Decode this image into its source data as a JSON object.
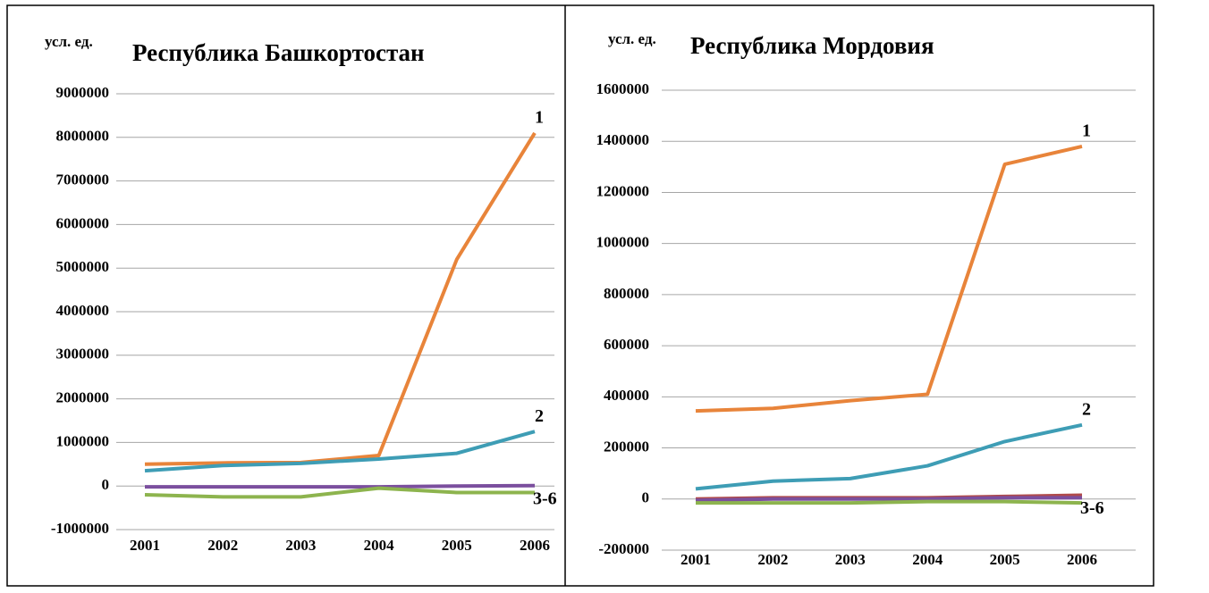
{
  "chart_data": [
    {
      "type": "line",
      "title": "Республика Башкортостан",
      "y_label": "усл. ед.",
      "categories": [
        "2001",
        "2002",
        "2003",
        "2004",
        "2005",
        "2006"
      ],
      "series": [
        {
          "color": "#e8843a",
          "values": [
            500000,
            530000,
            540000,
            700000,
            5200000,
            8100000
          ]
        },
        {
          "color": "#3e9db5",
          "values": [
            350000,
            470000,
            520000,
            620000,
            750000,
            1250000
          ]
        },
        {
          "color": "#7b4f9e",
          "values": [
            -20000,
            -20000,
            -20000,
            -20000,
            0,
            10000
          ]
        },
        {
          "color": "#8db44e",
          "values": [
            -200000,
            -250000,
            -250000,
            -50000,
            -150000,
            -150000
          ]
        }
      ],
      "annotations": [
        "1",
        "2",
        "3-6"
      ],
      "ylim": [
        -1000000,
        9000000
      ],
      "yticks": [
        -1000000,
        0,
        1000000,
        2000000,
        3000000,
        4000000,
        5000000,
        6000000,
        7000000,
        8000000,
        9000000
      ],
      "grid": true
    },
    {
      "type": "line",
      "title": "Республика Мордовия",
      "y_label": "усл. ед.",
      "categories": [
        "2001",
        "2002",
        "2003",
        "2004",
        "2005",
        "2006"
      ],
      "series": [
        {
          "color": "#e8843a",
          "values": [
            345000,
            355000,
            385000,
            410000,
            1310000,
            1380000
          ]
        },
        {
          "color": "#3e9db5",
          "values": [
            40000,
            70000,
            80000,
            130000,
            225000,
            290000
          ]
        },
        {
          "color": "#b04a4a",
          "values": [
            0,
            5000,
            5000,
            5000,
            10000,
            15000
          ]
        },
        {
          "color": "#7b4f9e",
          "values": [
            -5000,
            0,
            0,
            0,
            5000,
            5000
          ]
        },
        {
          "color": "#8db44e",
          "values": [
            -15000,
            -15000,
            -15000,
            -10000,
            -10000,
            -15000
          ]
        }
      ],
      "annotations": [
        "1",
        "2",
        "3-6"
      ],
      "ylim": [
        -200000,
        1600000
      ],
      "yticks": [
        -200000,
        0,
        200000,
        400000,
        600000,
        800000,
        1000000,
        1200000,
        1400000,
        1600000
      ],
      "grid": true
    }
  ]
}
